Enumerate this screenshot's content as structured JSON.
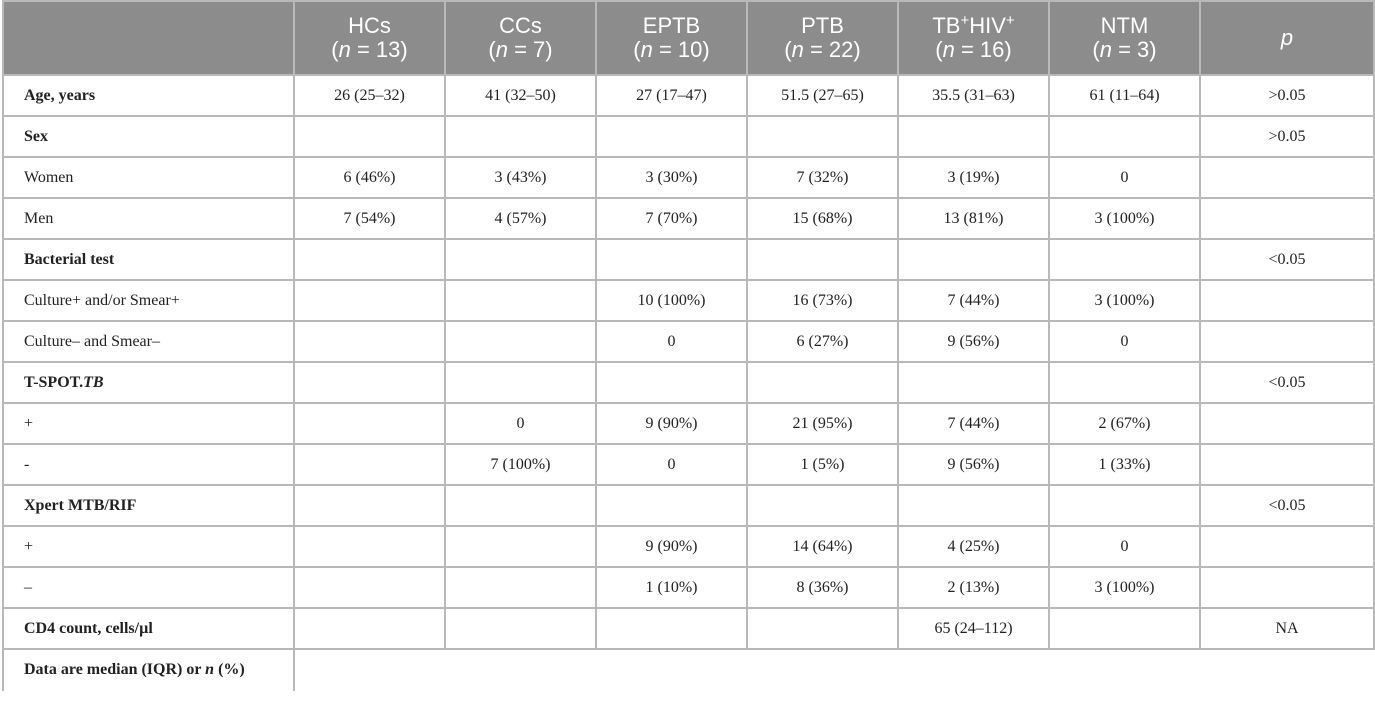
{
  "table": {
    "header": {
      "columns": [
        {
          "name": "HCs",
          "n": "13"
        },
        {
          "name": "CCs",
          "n": "7"
        },
        {
          "name": "EPTB",
          "n": "10"
        },
        {
          "name": "PTB",
          "n": "22"
        },
        {
          "name_prefix": "TB",
          "name_sup1": "+",
          "name_mid": "HIV",
          "name_sup2": "+",
          "n": "16"
        },
        {
          "name": "NTM",
          "n": "3"
        }
      ],
      "n_prefix": "(",
      "n_symbol": "n",
      "n_equals": " = ",
      "n_suffix": ")",
      "p_label": "p"
    },
    "rows": [
      {
        "label": "Age, years",
        "values": [
          "26 (25–32)",
          "41 (32–50)",
          "27 (17–47)",
          "51.5 (27–65)",
          "35.5 (31–63)",
          "61 (11–64)",
          ">0.05"
        ]
      },
      {
        "label": "Sex",
        "values": [
          "",
          "",
          "",
          "",
          "",
          "",
          ">0.05"
        ]
      },
      {
        "label": "Women",
        "values": [
          "6 (46%)",
          "3 (43%)",
          "3 (30%)",
          "7 (32%)",
          "3 (19%)",
          "0",
          ""
        ]
      },
      {
        "label": "Men",
        "values": [
          "7 (54%)",
          "4 (57%)",
          "7 (70%)",
          "15 (68%)",
          "13 (81%)",
          "3 (100%)",
          ""
        ]
      },
      {
        "label": "Bacterial test",
        "values": [
          "",
          "",
          "",
          "",
          "",
          "",
          "<0.05"
        ]
      },
      {
        "label": "Culture+ and/or Smear+",
        "values": [
          "",
          "",
          "10 (100%)",
          "16 (73%)",
          "7 (44%)",
          "3 (100%)",
          ""
        ]
      },
      {
        "label": "Culture– and Smear–",
        "values": [
          "",
          "",
          "0",
          "6 (27%)",
          "9 (56%)",
          "0",
          ""
        ]
      },
      {
        "label_main": "T-SPOT.",
        "label_italic": "TB",
        "values": [
          "",
          "",
          "",
          "",
          "",
          "",
          "<0.05"
        ]
      },
      {
        "label": "+",
        "values": [
          "",
          "0",
          "9 (90%)",
          "21 (95%)",
          "7 (44%)",
          "2 (67%)",
          ""
        ]
      },
      {
        "label": "-",
        "values": [
          "",
          "7 (100%)",
          "0",
          "1 (5%)",
          "9 (56%)",
          "1 (33%)",
          ""
        ]
      },
      {
        "label": "Xpert MTB/RIF",
        "values": [
          "",
          "",
          "",
          "",
          "",
          "",
          "<0.05"
        ]
      },
      {
        "label": "+",
        "values": [
          "",
          "",
          "9 (90%)",
          "14 (64%)",
          "4 (25%)",
          "0",
          ""
        ]
      },
      {
        "label": "–",
        "values": [
          "",
          "",
          "1 (10%)",
          "8 (36%)",
          "2 (13%)",
          "3 (100%)",
          ""
        ]
      },
      {
        "label": "CD4 count, cells/µl",
        "values": [
          "",
          "",
          "",
          "",
          "65 (24–112)",
          "",
          "NA"
        ]
      }
    ],
    "footnote": {
      "before": "Data are median (IQR) or ",
      "italic": "n",
      "after": " (%)"
    }
  },
  "colors": {
    "header_bg": "#8c8c8c",
    "header_text": "#ffffff",
    "border": "#b9b9b9",
    "body_text": "#222222"
  }
}
